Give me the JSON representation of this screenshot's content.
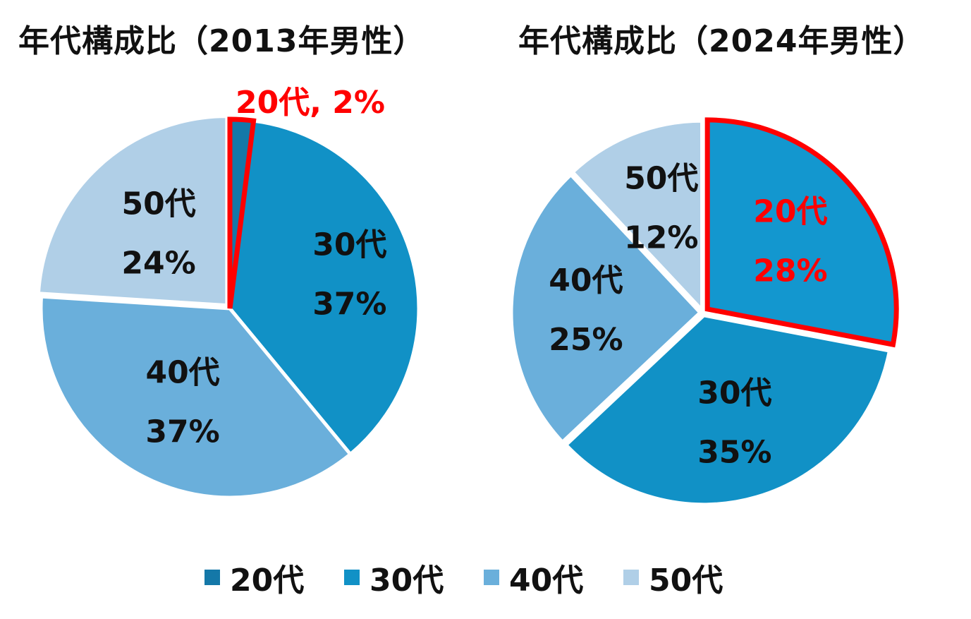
{
  "chart_data": [
    {
      "type": "pie",
      "title": "年代構成比（2013年男性）",
      "slices": [
        {
          "name": "20代",
          "value": 2,
          "label_name": "20代",
          "label_pct": "2%",
          "color": "#1478a8",
          "highlight": true,
          "label_style": "inline"
        },
        {
          "name": "30代",
          "value": 37,
          "label_name": "30代",
          "label_pct": "37%",
          "color": "#1191c6"
        },
        {
          "name": "40代",
          "value": 37,
          "label_name": "40代",
          "label_pct": "37%",
          "color": "#6aafdb"
        },
        {
          "name": "50代",
          "value": 24,
          "label_name": "50代",
          "label_pct": "24%",
          "color": "#b0cfe7"
        }
      ],
      "highlight_color": "#ff0000"
    },
    {
      "type": "pie",
      "title": "年代構成比（2024年男性）",
      "slices": [
        {
          "name": "20代",
          "value": 28,
          "label_name": "20代",
          "label_pct": "28%",
          "color": "#1397cf",
          "highlight": true
        },
        {
          "name": "30代",
          "value": 35,
          "label_name": "30代",
          "label_pct": "35%",
          "color": "#1191c6"
        },
        {
          "name": "40代",
          "value": 25,
          "label_name": "40代",
          "label_pct": "25%",
          "color": "#6aafdb"
        },
        {
          "name": "50代",
          "value": 12,
          "label_name": "50代",
          "label_pct": "12%",
          "color": "#b0cfe7"
        }
      ],
      "highlight_color": "#ff0000"
    }
  ],
  "legend": [
    {
      "label": "20代",
      "color": "#1478a8"
    },
    {
      "label": "30代",
      "color": "#1191c6"
    },
    {
      "label": "40代",
      "color": "#6aafdb"
    },
    {
      "label": "50代",
      "color": "#b0cfe7"
    }
  ]
}
